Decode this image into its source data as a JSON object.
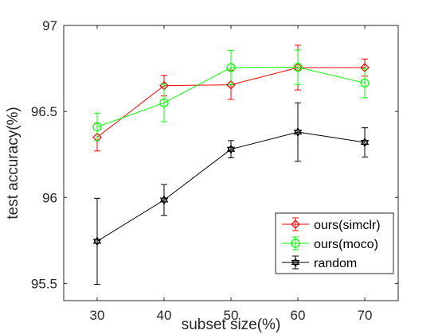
{
  "chart_data": {
    "type": "line",
    "title": "",
    "xlabel": "subset size(%)",
    "ylabel": "test accuracy(%)",
    "x": [
      30,
      40,
      50,
      60,
      70
    ],
    "xticks": [
      30,
      40,
      50,
      60,
      70
    ],
    "yticks": [
      95.5,
      96,
      96.5,
      97
    ],
    "xlim": [
      25,
      75
    ],
    "ylim": [
      95.4,
      97.0
    ],
    "grid": false,
    "legend_position": "bottom-right",
    "series": [
      {
        "name": "ours(simclr)",
        "color": "#ff0000",
        "marker": "diamond",
        "values": [
          96.35,
          96.65,
          96.655,
          96.755,
          96.755
        ],
        "err": [
          0.08,
          0.06,
          0.085,
          0.13,
          0.05
        ]
      },
      {
        "name": "ours(moco)",
        "color": "#00ff00",
        "marker": "circle",
        "values": [
          96.41,
          96.55,
          96.755,
          96.757,
          96.665
        ],
        "err": [
          0.08,
          0.11,
          0.1,
          0.1,
          0.085
        ]
      },
      {
        "name": "random",
        "color": "#000000",
        "marker": "hexagram",
        "values": [
          95.745,
          95.985,
          96.28,
          96.38,
          96.32
        ],
        "err": [
          0.25,
          0.09,
          0.05,
          0.17,
          0.085
        ]
      }
    ]
  }
}
